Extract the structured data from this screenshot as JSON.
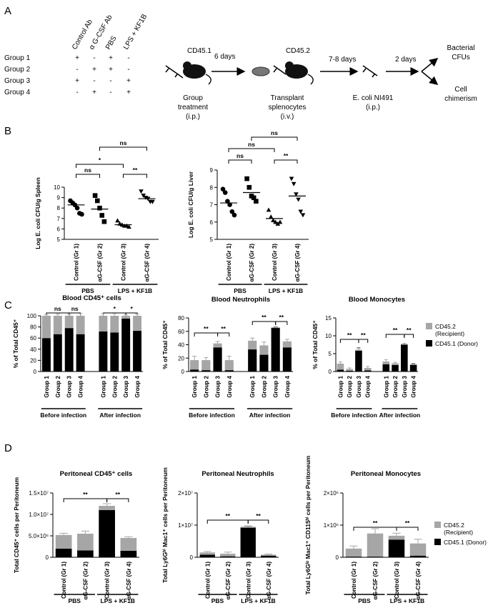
{
  "panel_labels": [
    "A",
    "B",
    "C",
    "D"
  ],
  "panel_a": {
    "columns": [
      "Control Ab",
      "α G-CSF Ab",
      "PBS",
      "LPS + KF1B"
    ],
    "rows": [
      {
        "label": "Group 1",
        "cells": [
          "+",
          "-",
          "+",
          "-"
        ]
      },
      {
        "label": "Group 2",
        "cells": [
          "-",
          "+",
          "+",
          "-"
        ]
      },
      {
        "label": "Group 3",
        "cells": [
          "+",
          "-",
          "-",
          "+"
        ]
      },
      {
        "label": "Group 4",
        "cells": [
          "-",
          "+",
          "-",
          "+"
        ]
      }
    ],
    "steps": {
      "donor": "CD45.1",
      "treatment": [
        "Group",
        "treatment",
        "(i.p.)"
      ],
      "interval_1": "6 days",
      "recipient": "CD45.2",
      "transplant": [
        "Transplant",
        "splenocytes",
        "(i.v.)"
      ],
      "interval_2": "7-8 days",
      "infection": [
        "E. coli NI491",
        "(i.p.)"
      ],
      "interval_3": "2 days",
      "outcome_1": [
        "Bacterial",
        "CFUs"
      ],
      "outcome_2": [
        "Cell",
        "chimerism"
      ]
    }
  },
  "chart_data": [
    {
      "type": "dot",
      "ylabel": "Log E. coli CFU/g Spleen",
      "categories": [
        "Control (Gr 1)",
        "αG-CSF (Gr 2)",
        "Control (Gr 3)",
        "αG-CSF (Gr 4)"
      ],
      "values": [
        [
          8.7,
          8.5,
          8.3,
          8.0,
          7.5,
          7.4
        ],
        [
          9.2,
          8.7,
          8.0,
          7.3,
          6.7
        ],
        [
          6.8,
          6.5,
          6.4,
          6.3,
          6.3,
          6.2
        ],
        [
          9.6,
          9.2,
          9.0,
          8.9,
          8.6,
          8.6
        ]
      ],
      "lines": [
        8.3,
        7.9,
        6.4,
        8.9
      ],
      "markers": [
        "circle",
        "square",
        "triangle",
        "triangle-down"
      ],
      "color": "#000000",
      "ylim": [
        5,
        10
      ],
      "yticks": [
        5,
        6,
        7,
        8,
        9,
        10
      ],
      "brackets": [
        {
          "text": "ns",
          "span": [
            0,
            1
          ]
        },
        {
          "text": "*",
          "span": [
            0,
            2
          ]
        },
        {
          "text": "**",
          "span": [
            2,
            3
          ]
        },
        {
          "text": "ns",
          "span": [
            1,
            3
          ]
        }
      ],
      "groups": [
        {
          "label": "PBS",
          "span": [
            0,
            1
          ]
        },
        {
          "label": "LPS + KF1B",
          "span": [
            2,
            3
          ]
        }
      ]
    },
    {
      "type": "dot",
      "ylabel": "Log E. coli CFU/g Liver",
      "categories": [
        "Control (Gr 1)",
        "αG-CSF (Gr 2)",
        "Control (Gr 3)",
        "αG-CSF (Gr 4)"
      ],
      "values": [
        [
          7.9,
          7.7,
          7.2,
          7.0,
          6.6,
          6.4
        ],
        [
          8.5,
          8.0,
          7.5,
          7.4,
          7.2
        ],
        [
          6.7,
          6.3,
          6.1,
          6.0,
          5.9,
          6.0
        ],
        [
          8.5,
          8.2,
          7.6,
          7.3,
          6.6,
          6.4
        ]
      ],
      "lines": [
        7.1,
        7.7,
        6.2,
        7.5
      ],
      "markers": [
        "circle",
        "square",
        "triangle",
        "triangle-down"
      ],
      "color": "#000000",
      "ylim": [
        5,
        9
      ],
      "yticks": [
        5,
        6,
        7,
        8,
        9
      ],
      "brackets": [
        {
          "text": "ns",
          "span": [
            0,
            1
          ]
        },
        {
          "text": "ns",
          "span": [
            0,
            2
          ]
        },
        {
          "text": "**",
          "span": [
            2,
            3
          ]
        },
        {
          "text": "ns",
          "span": [
            1,
            3
          ]
        }
      ],
      "groups": [
        {
          "label": "PBS",
          "span": [
            0,
            1
          ]
        },
        {
          "label": "LPS + KF1B",
          "span": [
            2,
            3
          ]
        }
      ]
    },
    {
      "type": "stacked_bar",
      "title": "Blood CD45⁺ cells",
      "ylabel": "% of Total CD45⁺",
      "categories": [
        "Group 1",
        "Group 2",
        "Group 3",
        "Group 4",
        "Group 1",
        "Group 2",
        "Group 3",
        "Group 4"
      ],
      "series": [
        {
          "name": "CD45.1 (Donor)",
          "color": "#000000",
          "values": [
            60,
            67,
            78,
            67,
            72,
            70,
            95,
            73
          ],
          "errors": [
            4,
            5,
            3,
            8,
            6,
            8,
            2,
            4
          ]
        },
        {
          "name": "CD45.2 (Recipient)",
          "color": "#a6a6a6",
          "values": [
            40,
            33,
            22,
            33,
            28,
            30,
            5,
            27
          ],
          "errors": [
            2,
            3,
            3,
            4,
            4,
            4,
            2,
            3
          ]
        }
      ],
      "ylim": [
        0,
        100
      ],
      "yticks": [
        0,
        20,
        40,
        60,
        80,
        100
      ],
      "brackets": [
        {
          "text": "ns",
          "span": [
            0,
            2
          ]
        },
        {
          "text": "ns",
          "span": [
            2,
            3
          ]
        },
        {
          "text": "*",
          "span": [
            4,
            6
          ]
        },
        {
          "text": "*",
          "span": [
            6,
            7
          ]
        }
      ],
      "groups": [
        {
          "label": "Before infection",
          "span": [
            0,
            3
          ]
        },
        {
          "label": "After infection",
          "span": [
            4,
            7
          ]
        }
      ]
    },
    {
      "type": "stacked_bar",
      "title": "Blood Neutrophils",
      "ylabel": "% of Total CD45⁺",
      "categories": [
        "Group 1",
        "Group 2",
        "Group 3",
        "Group 4",
        "Group 1",
        "Group 2",
        "Group 3",
        "Group 4"
      ],
      "series": [
        {
          "name": "CD45.1 (Donor)",
          "color": "#000000",
          "values": [
            3,
            2,
            36,
            2,
            33,
            25,
            65,
            36
          ],
          "errors": [
            2,
            1,
            3,
            1,
            5,
            8,
            1,
            4
          ]
        },
        {
          "name": "CD45.2 (Recipient)",
          "color": "#a6a6a6",
          "values": [
            14,
            15,
            6,
            15,
            13,
            14,
            1,
            9
          ],
          "errors": [
            6,
            4,
            3,
            6,
            4,
            5,
            1,
            3
          ]
        }
      ],
      "ylim": [
        0,
        80
      ],
      "yticks": [
        0,
        20,
        40,
        60,
        80
      ],
      "brackets": [
        {
          "text": "**",
          "span": [
            0,
            2
          ]
        },
        {
          "text": "**",
          "span": [
            2,
            3
          ]
        },
        {
          "text": "**",
          "span": [
            4,
            6
          ]
        },
        {
          "text": "**",
          "span": [
            6,
            7
          ]
        }
      ],
      "groups": [
        {
          "label": "Before infection",
          "span": [
            0,
            3
          ]
        },
        {
          "label": "After infection",
          "span": [
            4,
            7
          ]
        }
      ]
    },
    {
      "type": "stacked_bar",
      "title": "Blood Monocytes",
      "ylabel": "% of Total CD45⁺",
      "categories": [
        "Group 1",
        "Group 2",
        "Group 3",
        "Group 4",
        "Group 1",
        "Group 2",
        "Group 3",
        "Group 4"
      ],
      "series": [
        {
          "name": "CD45.1 (Donor)",
          "color": "#000000",
          "values": [
            0.5,
            0.2,
            5.8,
            0.3,
            2.0,
            1.8,
            7.5,
            1.8
          ],
          "errors": [
            0.3,
            0.1,
            0.8,
            0.2,
            0.4,
            0.3,
            0.4,
            0.3
          ]
        },
        {
          "name": "CD45.2 (Recipient)",
          "color": "#a6a6a6",
          "values": [
            1.7,
            0.5,
            0.3,
            0.7,
            0.8,
            0.5,
            0.2,
            0.3
          ],
          "errors": [
            0.5,
            0.3,
            0.4,
            0.4,
            0.5,
            0.3,
            0.2,
            0.2
          ]
        }
      ],
      "ylim": [
        0,
        15
      ],
      "yticks": [
        0,
        5,
        10,
        15
      ],
      "legend": "right",
      "brackets": [
        {
          "text": "**",
          "span": [
            0,
            2
          ]
        },
        {
          "text": "**",
          "span": [
            2,
            3
          ]
        },
        {
          "text": "**",
          "span": [
            4,
            6
          ]
        },
        {
          "text": "**",
          "span": [
            6,
            7
          ]
        }
      ],
      "groups": [
        {
          "label": "Before infection",
          "span": [
            0,
            3
          ]
        },
        {
          "label": "After infection",
          "span": [
            4,
            7
          ]
        }
      ]
    },
    {
      "type": "stacked_bar",
      "title": "Peritoneal CD45⁺ cells",
      "ylabel": "Total CD45⁺ cells per Peritoneum",
      "categories": [
        "Control (Gr 1)",
        "αG-CSF (Gr 2)",
        "Control (Gr 3)",
        "αG-CSF (Gr 4)"
      ],
      "series": [
        {
          "name": "CD45.1 (Donor)",
          "color": "#000000",
          "values": [
            2000000,
            1600000,
            11000000,
            1500000
          ],
          "errors": [
            300000,
            300000,
            800000,
            200000
          ]
        },
        {
          "name": "CD45.2 (Recipient)",
          "color": "#a6a6a6",
          "values": [
            3200000,
            3900000,
            1000000,
            3000000
          ],
          "errors": [
            400000,
            600000,
            500000,
            300000
          ]
        }
      ],
      "ylim": [
        0,
        15000000
      ],
      "yticks": [
        0,
        {
          "value": 5000000,
          "label": "5.0×10⁶"
        },
        {
          "value": 10000000,
          "label": "1.0×10⁷"
        },
        {
          "value": 15000000,
          "label": "1.5×10⁷"
        }
      ],
      "brackets": [
        {
          "text": "**",
          "span": [
            0,
            2
          ]
        },
        {
          "text": "**",
          "span": [
            2,
            3
          ]
        }
      ],
      "groups": [
        {
          "label": "PBS",
          "span": [
            0,
            1
          ]
        },
        {
          "label": "LPS + KF1B",
          "span": [
            2,
            3
          ]
        }
      ]
    },
    {
      "type": "stacked_bar",
      "title": "Peritoneal Neutrophils",
      "ylabel": "Total Ly6Gʰⁱ Mac1⁺ cells per Peritoneum",
      "categories": [
        "Control (Gr 1)",
        "αG-CSF (Gr 2)",
        "Control (Gr 3)",
        "αG-CSF (Gr 4)"
      ],
      "series": [
        {
          "name": "CD45.1 (Donor)",
          "color": "#000000",
          "values": [
            800000,
            300000,
            9200000,
            500000
          ],
          "errors": [
            200000,
            100000,
            500000,
            100000
          ]
        },
        {
          "name": "CD45.2 (Recipient)",
          "color": "#a6a6a6",
          "values": [
            700000,
            800000,
            300000,
            300000
          ],
          "errors": [
            300000,
            500000,
            200000,
            200000
          ]
        }
      ],
      "ylim": [
        0,
        20000000
      ],
      "yticks": [
        0,
        {
          "value": 10000000,
          "label": "1×10⁷"
        },
        {
          "value": 20000000,
          "label": "2×10⁷"
        }
      ],
      "brackets": [
        {
          "text": "**",
          "span": [
            0,
            2
          ]
        },
        {
          "text": "**",
          "span": [
            2,
            3
          ]
        }
      ],
      "groups": [
        {
          "label": "PBS",
          "span": [
            0,
            1
          ]
        },
        {
          "label": "LPS + KF1B",
          "span": [
            2,
            3
          ]
        }
      ]
    },
    {
      "type": "stacked_bar",
      "title": "Peritoneal Monocytes",
      "ylabel": "Total Ly6Gˡᵒ Mac1⁺ CD115ʰⁱ cells per Peritoneum",
      "categories": [
        "Control (Gr 1)",
        "αG-CSF (Gr 2)",
        "Control (Gr 3)",
        "αG-CSF (Gr 4)"
      ],
      "series": [
        {
          "name": "CD45.1 (Donor)",
          "color": "#000000",
          "values": [
            20000,
            20000,
            550000,
            50000
          ],
          "errors": [
            10000,
            10000,
            100000,
            10000
          ]
        },
        {
          "name": "CD45.2 (Recipient)",
          "color": "#a6a6a6",
          "values": [
            250000,
            720000,
            120000,
            380000
          ],
          "errors": [
            80000,
            150000,
            80000,
            130000
          ]
        }
      ],
      "ylim": [
        0,
        2000000
      ],
      "yticks": [
        0,
        {
          "value": 1000000,
          "label": "1×10⁶"
        },
        {
          "value": 2000000,
          "label": "2×10⁶"
        }
      ],
      "legend": "right",
      "brackets": [
        {
          "text": "**",
          "span": [
            0,
            2
          ]
        },
        {
          "text": "**",
          "span": [
            2,
            3
          ]
        }
      ],
      "groups": [
        {
          "label": "PBS",
          "span": [
            0,
            1
          ]
        },
        {
          "label": "LPS + KF1B",
          "span": [
            2,
            3
          ]
        }
      ]
    }
  ]
}
